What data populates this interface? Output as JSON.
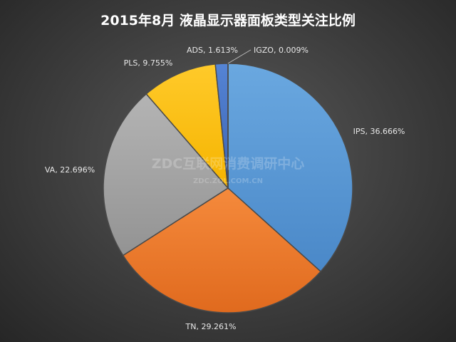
{
  "watermark": {
    "main": "ZDC互联网消费调研中心",
    "sub": "ZDC.ZOL.COM.CN"
  },
  "chart_data": {
    "type": "pie",
    "title": "2015年8月  液晶显示器面板类型关注比例",
    "slices": [
      {
        "name": "IPS",
        "value": 36.666,
        "label": "IPS, 36.666%",
        "color": "#5b9bd5"
      },
      {
        "name": "TN",
        "value": 29.261,
        "label": "TN, 29.261%",
        "color": "#ed7d31"
      },
      {
        "name": "VA",
        "value": 22.696,
        "label": "VA, 22.696%",
        "color": "#a5a5a5"
      },
      {
        "name": "PLS",
        "value": 9.755,
        "label": "PLS, 9.755%",
        "color": "#ffc000"
      },
      {
        "name": "ADS",
        "value": 1.613,
        "label": "ADS, 1.613%",
        "color": "#4472c4"
      },
      {
        "name": "IGZO",
        "value": 0.009,
        "label": "IGZO, 0.009%",
        "color": "#70ad47"
      }
    ]
  }
}
